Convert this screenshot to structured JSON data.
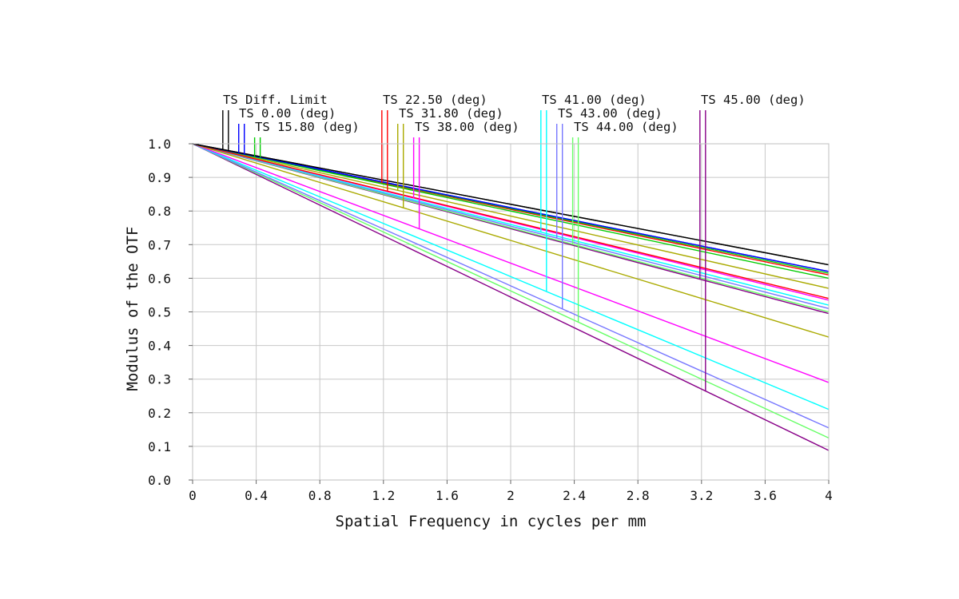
{
  "chart_data": {
    "type": "line",
    "title": "",
    "xlabel": "Spatial Frequency in cycles per mm",
    "ylabel": "Modulus of the OTF",
    "xlim": [
      0,
      4
    ],
    "ylim": [
      0,
      1
    ],
    "grid": true,
    "x_ticks": [
      "0",
      "0.4",
      "0.8",
      "1.2",
      "1.6",
      "2",
      "2.4",
      "2.8",
      "3.2",
      "3.6",
      "4"
    ],
    "y_ticks": [
      "0.0",
      "0.1",
      "0.2",
      "0.3",
      "0.4",
      "0.5",
      "0.6",
      "0.7",
      "0.8",
      "0.9",
      "1.0"
    ],
    "x": [
      0,
      4
    ],
    "series": [
      {
        "name": "TS Diff. Limit",
        "color": "#000000",
        "tangential": [
          1.0,
          0.64
        ],
        "sagittal": [
          1.0,
          0.64
        ]
      },
      {
        "name": "TS 0.00 (deg)",
        "color": "#0000ff",
        "tangential": [
          1.0,
          0.62
        ],
        "sagittal": [
          1.0,
          0.62
        ]
      },
      {
        "name": "TS 15.80 (deg)",
        "color": "#00cc00",
        "tangential": [
          1.0,
          0.6
        ],
        "sagittal": [
          1.0,
          0.615
        ]
      },
      {
        "name": "TS 22.50 (deg)",
        "color": "#ff0000",
        "tangential": [
          1.0,
          0.61
        ],
        "sagittal": [
          1.0,
          0.54
        ]
      },
      {
        "name": "TS 31.80 (deg)",
        "color": "#aaaa00",
        "tangential": [
          1.0,
          0.57
        ],
        "sagittal": [
          1.0,
          0.425
        ]
      },
      {
        "name": "TS 38.00 (deg)",
        "color": "#ff00ff",
        "tangential": [
          1.0,
          0.535
        ],
        "sagittal": [
          1.0,
          0.29
        ]
      },
      {
        "name": "TS 41.00 (deg)",
        "color": "#00ffff",
        "tangential": [
          1.0,
          0.52
        ],
        "sagittal": [
          1.0,
          0.21
        ]
      },
      {
        "name": "TS 43.00 (deg)",
        "color": "#7777ff",
        "tangential": [
          1.0,
          0.51
        ],
        "sagittal": [
          1.0,
          0.155
        ]
      },
      {
        "name": "TS 44.00 (deg)",
        "color": "#66ff66",
        "tangential": [
          1.0,
          0.5
        ],
        "sagittal": [
          1.0,
          0.125
        ]
      },
      {
        "name": "TS 45.00 (deg)",
        "color": "#880088",
        "tangential": [
          1.0,
          0.495
        ],
        "sagittal": [
          1.0,
          0.088
        ]
      }
    ]
  }
}
